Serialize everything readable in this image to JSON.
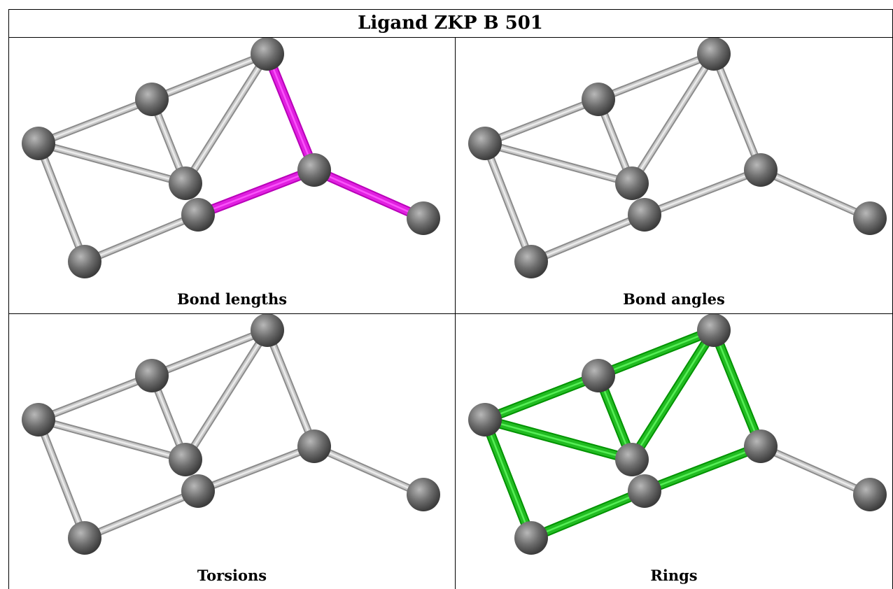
{
  "title": "Ligand ZKP B 501",
  "panels": [
    {
      "id": "bond-lengths",
      "caption": "Bond lengths",
      "highlight": "#e020e0",
      "highlighted_bonds": [
        "N1-N2",
        "N2-N3",
        "N2-N4"
      ]
    },
    {
      "id": "bond-angles",
      "caption": "Bond angles",
      "highlight": null,
      "highlighted_bonds": []
    },
    {
      "id": "torsions",
      "caption": "Torsions",
      "highlight": null,
      "highlighted_bonds": []
    },
    {
      "id": "rings",
      "caption": "Rings",
      "highlight": "#22bb22",
      "highlighted_bonds": [
        "A0-A1",
        "A1-A2",
        "A2-A3",
        "A3-A4",
        "A4-A0",
        "A1-N1",
        "A2-N1",
        "N1-N2",
        "A5-N2",
        "A5-A3"
      ]
    }
  ],
  "colors": {
    "atom": "#6e6e6e",
    "bond": "#c8c8c8"
  }
}
